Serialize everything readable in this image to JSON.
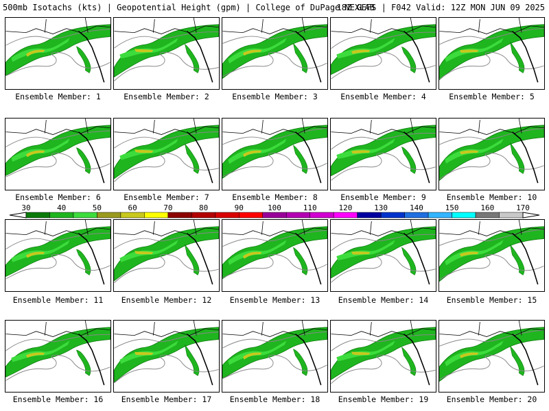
{
  "header": {
    "title_left": "500mb Isotachs (kts) | Geopotential Height (gpm) | College of DuPage NEXLAB",
    "title_right": "18Z GEFS | F042 Valid: 12Z MON JUN 09 2025"
  },
  "members": [
    "Ensemble Member: 1",
    "Ensemble Member: 2",
    "Ensemble Member: 3",
    "Ensemble Member: 4",
    "Ensemble Member: 5",
    "Ensemble Member: 6",
    "Ensemble Member: 7",
    "Ensemble Member: 8",
    "Ensemble Member: 9",
    "Ensemble Member: 10",
    "Ensemble Member: 11",
    "Ensemble Member: 12",
    "Ensemble Member: 13",
    "Ensemble Member: 14",
    "Ensemble Member: 15",
    "Ensemble Member: 16",
    "Ensemble Member: 17",
    "Ensemble Member: 18",
    "Ensemble Member: 19",
    "Ensemble Member: 20"
  ],
  "colorbar": {
    "tick_labels": [
      "30",
      "40",
      "50",
      "60",
      "70",
      "80",
      "90",
      "100",
      "110",
      "120",
      "130",
      "140",
      "150",
      "160",
      "170"
    ],
    "colors": [
      "#0a7a0a",
      "#1fb51f",
      "#3ddc3d",
      "#9a9a1e",
      "#c8c81e",
      "#ffff00",
      "#8b0000",
      "#b30000",
      "#d80000",
      "#ff0000",
      "#990099",
      "#b300b3",
      "#d100d1",
      "#ff00ff",
      "#0000a0",
      "#0033cc",
      "#1f6fe0",
      "#33b5ff",
      "#00ffff",
      "#777777",
      "#c8c8c8"
    ]
  }
}
